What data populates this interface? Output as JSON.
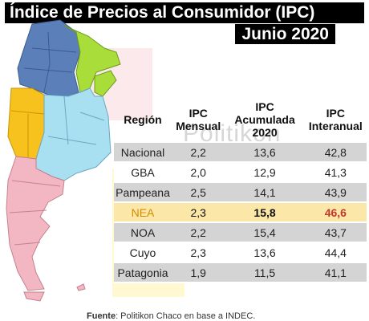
{
  "header": {
    "title": "Índice de Precios al Consumidor (IPC)",
    "subtitle": "Junio 2020"
  },
  "watermark": "Politikon",
  "table": {
    "headers": [
      "Región",
      "IPC Mensual",
      "IPC Acumulada 2020",
      "IPC Interanual"
    ],
    "rows": [
      {
        "region": "Nacional",
        "mensual": "2,2",
        "acumulada": "13,6",
        "interanual": "42,8"
      },
      {
        "region": "GBA",
        "mensual": "2,0",
        "acumulada": "12,9",
        "interanual": "41,3"
      },
      {
        "region": "Pampeana",
        "mensual": "2,5",
        "acumulada": "14,1",
        "interanual": "43,9"
      },
      {
        "region": "NEA",
        "mensual": "2,3",
        "acumulada": "15,8",
        "interanual": "46,6"
      },
      {
        "region": "NOA",
        "mensual": "2,2",
        "acumulada": "15,4",
        "interanual": "43,7"
      },
      {
        "region": "Cuyo",
        "mensual": "2,3",
        "acumulada": "13,6",
        "interanual": "44,4"
      },
      {
        "region": "Patagonia",
        "mensual": "1,9",
        "acumulada": "11,5",
        "interanual": "41,1"
      }
    ]
  },
  "source": {
    "label": "Fuente",
    "text": ": Politikon Chaco en base a INDEC."
  },
  "colors": {
    "noa": "#5b7fb8",
    "nea": "#a9de3a",
    "cuyo": "#f7c21e",
    "pampeana": "#a8dff1",
    "patagonia": "#f3b6c3",
    "highlight": "#c0392b"
  }
}
